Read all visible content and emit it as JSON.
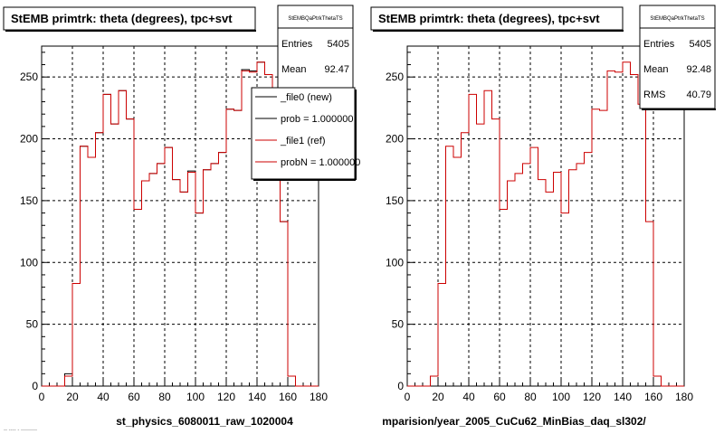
{
  "chart_data": [
    {
      "type": "histogram",
      "title": "StEMB primtrk: theta (degrees), tpc+svt",
      "xlabel": "st_physics_6080011_raw_1020004",
      "xlim": [
        0,
        180
      ],
      "ylim": [
        0,
        275
      ],
      "xticks": [
        0,
        20,
        40,
        60,
        80,
        100,
        120,
        140,
        160,
        180
      ],
      "yticks": [
        0,
        50,
        100,
        150,
        200,
        250
      ],
      "grid": true,
      "bin_edges": [
        0,
        5,
        10,
        15,
        20,
        25,
        30,
        35,
        40,
        45,
        50,
        55,
        60,
        65,
        70,
        75,
        80,
        85,
        90,
        95,
        100,
        105,
        110,
        115,
        120,
        125,
        130,
        135,
        140,
        145,
        150,
        155,
        160,
        165,
        170,
        175,
        180
      ],
      "series": [
        {
          "name": "_file0 (new)",
          "color": "#000000",
          "values": [
            0,
            0,
            0,
            10,
            83,
            194,
            185,
            205,
            236,
            212,
            239,
            216,
            143,
            166,
            172,
            180,
            193,
            167,
            157,
            174,
            140,
            175,
            180,
            189,
            224,
            223,
            256,
            255,
            262,
            252,
            228,
            133,
            8,
            0,
            0,
            0
          ]
        },
        {
          "name": "_file1 (ref)",
          "color": "#cc0000",
          "values": [
            0,
            0,
            0,
            8,
            83,
            194,
            185,
            205,
            236,
            212,
            239,
            216,
            143,
            166,
            172,
            180,
            193,
            167,
            157,
            173,
            140,
            175,
            180,
            189,
            224,
            223,
            255,
            254,
            262,
            252,
            228,
            133,
            8,
            0,
            0,
            0
          ]
        }
      ],
      "stats": {
        "name": "StEMBQaPtrkThetaTS",
        "rows": [
          [
            "Entries",
            "5405"
          ],
          [
            "Mean",
            "92.47"
          ]
        ]
      },
      "legend": {
        "placement": "top-right",
        "entries": [
          {
            "label": "_file0 (new)",
            "color": "#000000"
          },
          {
            "label": "prob = 1.000000",
            "color": "#000000"
          },
          {
            "label": "_file1 (ref)",
            "color": "#cc0000"
          },
          {
            "label": "probN = 1.000000",
            "color": "#cc0000"
          }
        ]
      }
    },
    {
      "type": "histogram",
      "title": "StEMB primtrk: theta (degrees), tpc+svt",
      "xlabel": "mparision/year_2005_CuCu62_MinBias_daq_sl302/",
      "xlim": [
        0,
        180
      ],
      "ylim": [
        0,
        275
      ],
      "xticks": [
        0,
        20,
        40,
        60,
        80,
        100,
        120,
        140,
        160,
        180
      ],
      "yticks": [
        0,
        50,
        100,
        150,
        200,
        250
      ],
      "grid": true,
      "bin_edges": [
        0,
        5,
        10,
        15,
        20,
        25,
        30,
        35,
        40,
        45,
        50,
        55,
        60,
        65,
        70,
        75,
        80,
        85,
        90,
        95,
        100,
        105,
        110,
        115,
        120,
        125,
        130,
        135,
        140,
        145,
        150,
        155,
        160,
        165,
        170,
        175,
        180
      ],
      "series": [
        {
          "name": "",
          "color": "#cc0000",
          "values": [
            0,
            0,
            0,
            8,
            83,
            194,
            185,
            205,
            236,
            212,
            239,
            216,
            143,
            166,
            172,
            180,
            193,
            167,
            157,
            173,
            140,
            175,
            180,
            189,
            224,
            223,
            255,
            254,
            262,
            252,
            228,
            133,
            8,
            0,
            0,
            0
          ]
        }
      ],
      "stats": {
        "name": "StEMBQaPtrkThetaTS",
        "rows": [
          [
            "Entries",
            "5405"
          ],
          [
            "Mean",
            "92.48"
          ],
          [
            "RMS",
            "40.79"
          ]
        ]
      }
    }
  ],
  "footer_text": "-- ---- - ---------"
}
